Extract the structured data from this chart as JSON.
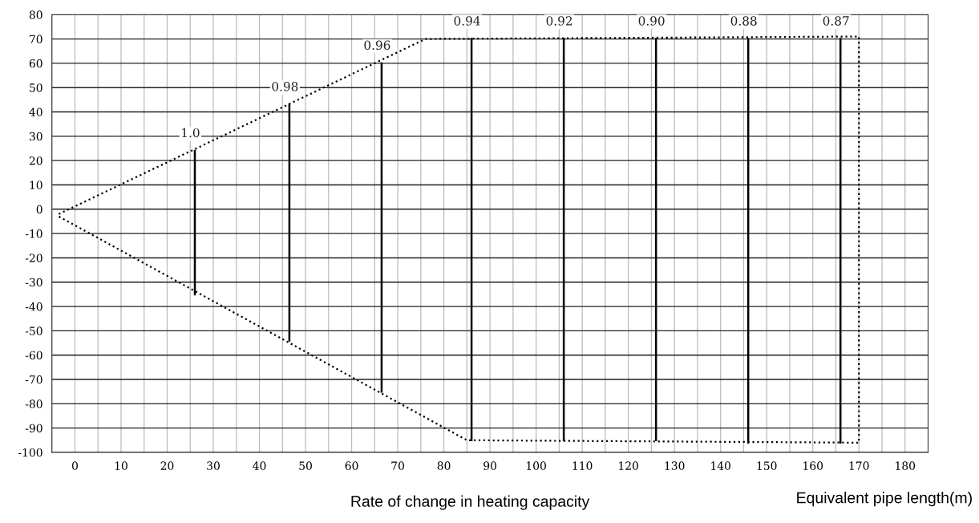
{
  "chart_data": {
    "type": "line",
    "xlabel": "Equivalent pipe length(m)",
    "annotations": [
      "Rate of change in heating capacity",
      {
        "text": "1.0",
        "x": 26,
        "y": 24
      },
      {
        "text": "0.98",
        "x": 46.5,
        "y": 43
      },
      {
        "text": "0.96",
        "x": 66.5,
        "y": 60
      },
      {
        "text": "0.94",
        "x": 86,
        "y": 70
      },
      {
        "text": "0.92",
        "x": 106,
        "y": 70
      },
      {
        "text": "0.90",
        "x": 126,
        "y": 70
      },
      {
        "text": "0.88",
        "x": 146,
        "y": 70
      },
      {
        "text": "0.87",
        "x": 166,
        "y": 70
      }
    ],
    "series": [
      {
        "color": "#000000",
        "line_style": "dotted",
        "x": [
          -3.5,
          76,
          170,
          170,
          85,
          -3.5
        ],
        "values": [
          -2,
          70,
          71,
          -96,
          -95,
          -3
        ]
      },
      {
        "color": "#000000",
        "line_style": "solid",
        "x": [
          26,
          26
        ],
        "values": [
          24,
          -35
        ]
      },
      {
        "color": "#000000",
        "line_style": "solid",
        "x": [
          46.5,
          46.5
        ],
        "values": [
          43,
          -54
        ]
      },
      {
        "color": "#000000",
        "line_style": "solid",
        "x": [
          66.5,
          66.5
        ],
        "values": [
          60,
          -75
        ]
      },
      {
        "color": "#000000",
        "line_style": "solid",
        "x": [
          86,
          86
        ],
        "values": [
          70,
          -95
        ]
      },
      {
        "color": "#000000",
        "line_style": "solid",
        "x": [
          106,
          106
        ],
        "values": [
          70,
          -95
        ]
      },
      {
        "color": "#000000",
        "line_style": "solid",
        "x": [
          126,
          126
        ],
        "values": [
          70,
          -95
        ]
      },
      {
        "color": "#000000",
        "line_style": "solid",
        "x": [
          146,
          146
        ],
        "values": [
          70,
          -96
        ]
      },
      {
        "color": "#000000",
        "line_style": "solid",
        "x": [
          166,
          166
        ],
        "values": [
          70,
          -96
        ]
      }
    ],
    "xlim": [
      -5,
      185
    ],
    "xticks": [
      {
        "value": -5,
        "label": null
      },
      0,
      {
        "value": 5,
        "label": null
      },
      10,
      {
        "value": 15,
        "label": null
      },
      20,
      {
        "value": 25,
        "label": null
      },
      30,
      {
        "value": 35,
        "label": null
      },
      40,
      {
        "value": 45,
        "label": null
      },
      50,
      {
        "value": 55,
        "label": null
      },
      60,
      {
        "value": 65,
        "label": null
      },
      70,
      {
        "value": 75,
        "label": null
      },
      80,
      {
        "value": 85,
        "label": null
      },
      90,
      {
        "value": 95,
        "label": null
      },
      100,
      {
        "value": 105,
        "label": null
      },
      110,
      {
        "value": 115,
        "label": null
      },
      120,
      {
        "value": 125,
        "label": null
      },
      130,
      {
        "value": 135,
        "label": null
      },
      140,
      {
        "value": 145,
        "label": null
      },
      150,
      {
        "value": 155,
        "label": null
      },
      160,
      {
        "value": 165,
        "label": null
      },
      170,
      {
        "value": 175,
        "label": null
      },
      180
    ],
    "ylim": [
      -100,
      80
    ],
    "yticks": [
      -100,
      -90,
      -80,
      -70,
      -60,
      -50,
      -40,
      -30,
      -20,
      -10,
      0,
      10,
      20,
      30,
      40,
      50,
      60,
      70,
      80
    ],
    "grid": true,
    "marker": "none"
  }
}
